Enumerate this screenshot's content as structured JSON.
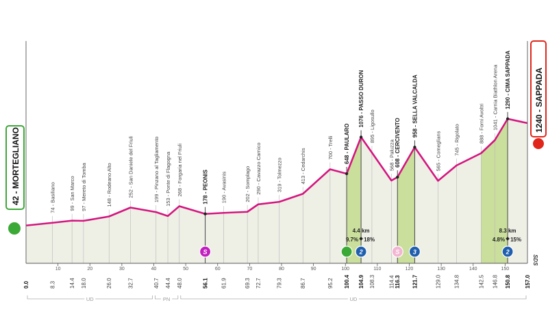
{
  "chart_data": {
    "type": "area",
    "x": [
      0.0,
      8.3,
      14.4,
      18.0,
      26.0,
      32.7,
      40.7,
      44.4,
      48.0,
      56.1,
      61.9,
      69.3,
      72.7,
      79.3,
      86.7,
      95.2,
      100.4,
      104.9,
      108.3,
      114.4,
      116.3,
      121.7,
      129.0,
      134.8,
      142.5,
      146.8,
      150.8,
      157.0
    ],
    "x_labels": [
      "0.0",
      "8.3",
      "14.4",
      "18.0",
      "26.0",
      "32.7",
      "40.7",
      "44.4",
      "48.0",
      "56.1",
      "61.9",
      "69.3",
      "72.7",
      "79.3",
      "86.7",
      "95.2",
      "100.4",
      "104.9",
      "108.3",
      "114.4",
      "116.3",
      "121.7",
      "129.0",
      "134.8",
      "142.5",
      "146.8",
      "150.8",
      "157.0"
    ],
    "values": [
      42,
      74,
      99,
      97,
      148,
      252,
      199,
      153,
      268,
      178,
      190,
      202,
      290,
      319,
      413,
      700,
      648,
      1076,
      895,
      568,
      608,
      958,
      565,
      745,
      888,
      1041,
      1290,
      1240
    ],
    "labels": [
      "42 - MORTEGLIANO",
      "74 - Basiliano",
      "99 - San Marco",
      "97 - Mereto di Tomba",
      "148 - Rodeano Alto",
      "252 - San Daniele del Friuli",
      "199 - Pinzano al Tagliamento",
      "153 - Ponte di Flagogna",
      "268 - Forgaria nel Friuli",
      "178 - PEONIS",
      "190 - Avasinis",
      "202 - Somplago",
      "290 - Cavazzo Carnico",
      "319 - Tolmezzo",
      "413 - Cedarchis",
      "700 - Trelli",
      "648 - PAULARO",
      "1076 - PASSO DURON",
      "895 - Ligosullo",
      "568 - Paluzza",
      "608 - CERCIVENTO",
      "958 - SELLA VALCALDA",
      "565 - Comeglians",
      "745 - Rigolato",
      "888 - Forni Avoltri",
      "1041 - Carnia Biathlon Arena",
      "1290 - CIMA SAPPADA",
      "1240 - SAPPADA"
    ],
    "bold": [
      true,
      false,
      false,
      false,
      false,
      false,
      false,
      false,
      false,
      true,
      false,
      false,
      false,
      false,
      false,
      false,
      true,
      true,
      false,
      false,
      true,
      true,
      false,
      false,
      false,
      false,
      true,
      true
    ],
    "color": "#d4157f",
    "fill": "#eef0e6",
    "xlim": [
      0,
      157
    ],
    "ylim": [
      -400,
      2200
    ],
    "xticks": [
      10,
      20,
      30,
      40,
      50,
      60,
      70,
      80,
      90,
      100,
      110,
      120,
      130,
      140,
      150
    ],
    "climbs": [
      {
        "from": 100.5,
        "to": 104.9,
        "length": "4.4 km",
        "avg": "9.7%",
        "max": "18%"
      },
      {
        "from": 116.3,
        "to": 121.7
      },
      {
        "from": 142.5,
        "to": 150.8,
        "length": "8.3 km",
        "avg": "4.8%",
        "max": "15%"
      }
    ],
    "climb_color": "#cadf9c",
    "icons": [
      {
        "x": 56.1,
        "label": "S",
        "color": "#c21fbf"
      },
      {
        "x": 100.4,
        "color": "#3ba936"
      },
      {
        "x": 104.9,
        "label": "2",
        "color": "#1f5fae"
      },
      {
        "x": 116.3,
        "label": "S",
        "color": "#f2b6d2"
      },
      {
        "x": 121.7,
        "label": "3",
        "color": "#1f5fae"
      },
      {
        "x": 150.8,
        "label": "2",
        "color": "#1f5fae"
      }
    ],
    "regions": [
      {
        "name": "UD",
        "from": 0,
        "to": 40
      },
      {
        "name": "PN",
        "from": 40,
        "to": 48
      },
      {
        "name": "UD",
        "from": 48,
        "to": 157
      }
    ],
    "credit": "SDS"
  }
}
